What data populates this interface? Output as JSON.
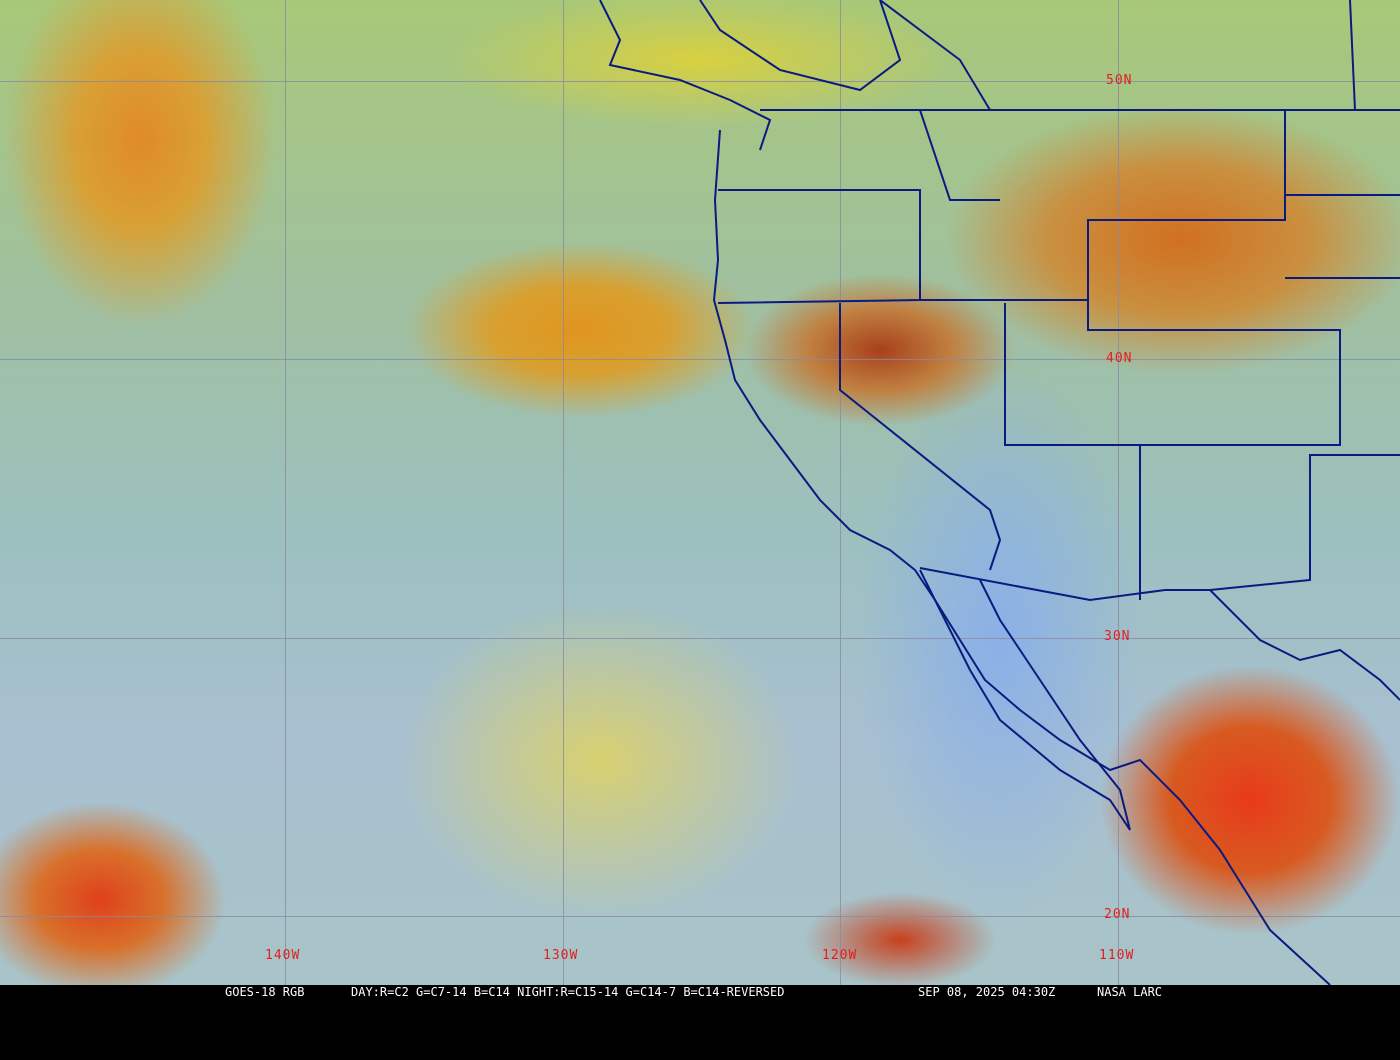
{
  "map": {
    "latitude_labels": [
      "50N",
      "40N",
      "30N",
      "20N"
    ],
    "longitude_labels": [
      "140W",
      "130W",
      "120W",
      "110W"
    ],
    "label_color": "#e02020",
    "boundary_color": "#0a1a80",
    "grid_color": "#8a8aa0"
  },
  "caption": {
    "product": "GOES-18 RGB",
    "recipe": "DAY:R=C2 G=C7-14 B=C14 NIGHT:R=C15-14 G=C14-7 B=C14-REVERSED",
    "datetime": "SEP 08, 2025 04:30Z",
    "credit": "NASA LARC"
  }
}
